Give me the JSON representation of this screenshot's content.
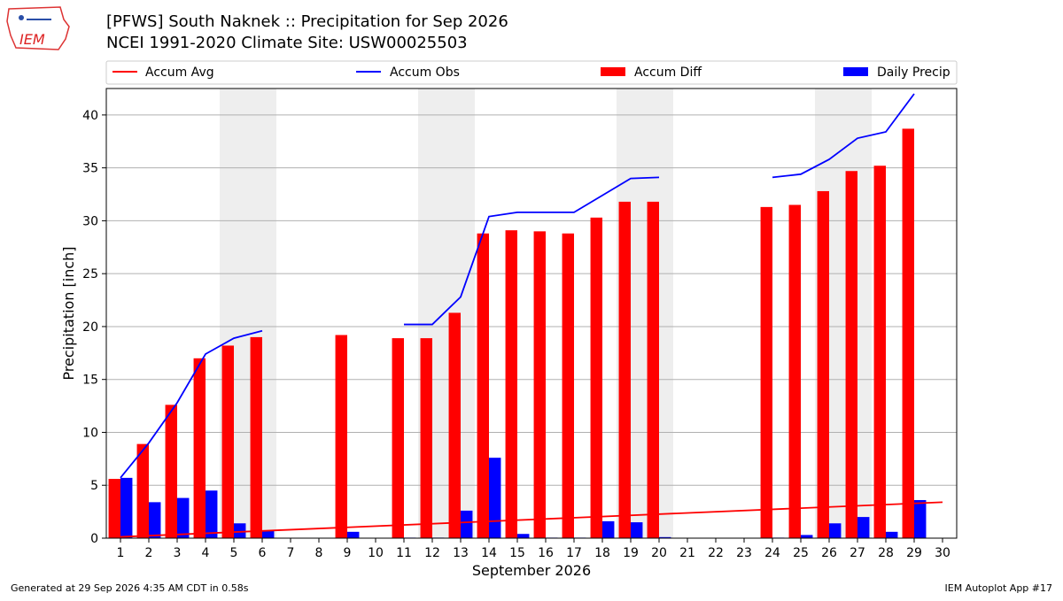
{
  "header": {
    "logo_text": "IEM",
    "title_line1": "[PFWS] South Naknek :: Precipitation for Sep 2026",
    "title_line2": "NCEI 1991-2020 Climate Site: USW00025503"
  },
  "footer": {
    "left": "Generated at 29 Sep 2026 4:35 AM CDT in 0.58s",
    "right": "IEM Autoplot App #17"
  },
  "colors": {
    "accum_avg": "#ff0000",
    "accum_obs": "#0000ff",
    "accum_diff": "#ff0000",
    "daily_precip": "#0000ff",
    "weekend_shade": "#eeeeee",
    "grid": "#b0b0b0"
  },
  "chart_data": {
    "type": "bar",
    "xlabel": "September 2026",
    "ylabel": "Precipitation [inch]",
    "xlim": [
      0.5,
      30.5
    ],
    "ylim": [
      0,
      42.5
    ],
    "grid": true,
    "legend_placement": "top",
    "weekend_shaded_days": [
      5,
      6,
      12,
      13,
      19,
      20,
      26,
      27
    ],
    "categories": [
      1,
      2,
      3,
      4,
      5,
      6,
      7,
      8,
      9,
      10,
      11,
      12,
      13,
      14,
      15,
      16,
      17,
      18,
      19,
      20,
      21,
      22,
      23,
      24,
      25,
      26,
      27,
      28,
      29,
      30
    ],
    "y_ticks": [
      0,
      5,
      10,
      15,
      20,
      25,
      30,
      35,
      40
    ],
    "series": [
      {
        "name": "Accum Avg",
        "kind": "line",
        "x": [
          1,
          30
        ],
        "values": [
          0.12,
          3.4
        ]
      },
      {
        "name": "Accum Obs",
        "kind": "line",
        "segments": [
          {
            "x": [
              1,
              2,
              3,
              4,
              5,
              6
            ],
            "values": [
              5.7,
              9.0,
              12.8,
              17.4,
              18.9,
              19.6
            ]
          },
          {
            "x": [
              11,
              12,
              13,
              14,
              15,
              16,
              17,
              18,
              19,
              20
            ],
            "values": [
              20.2,
              20.2,
              22.8,
              30.4,
              30.8,
              30.8,
              30.8,
              32.4,
              34.0,
              34.1
            ]
          },
          {
            "x": [
              24,
              25,
              26,
              27,
              28,
              29
            ],
            "values": [
              34.1,
              34.4,
              35.8,
              37.8,
              38.4,
              42.0
            ]
          }
        ]
      },
      {
        "name": "Accum Diff",
        "kind": "bar",
        "values": [
          5.6,
          8.9,
          12.6,
          17.0,
          18.2,
          19.0,
          null,
          null,
          19.2,
          null,
          18.9,
          18.9,
          21.3,
          28.8,
          29.1,
          29.0,
          28.8,
          30.3,
          31.8,
          31.8,
          null,
          null,
          null,
          31.3,
          31.5,
          32.8,
          34.7,
          35.2,
          38.7,
          null
        ]
      },
      {
        "name": "Daily Precip",
        "kind": "bar",
        "values": [
          5.7,
          3.4,
          3.8,
          4.5,
          1.4,
          0.7,
          null,
          null,
          0.6,
          null,
          0.05,
          0.05,
          2.6,
          7.6,
          0.4,
          0.05,
          0.05,
          1.6,
          1.5,
          0.1,
          null,
          null,
          null,
          0.05,
          0.3,
          1.4,
          2.0,
          0.6,
          3.6,
          null
        ]
      }
    ]
  }
}
